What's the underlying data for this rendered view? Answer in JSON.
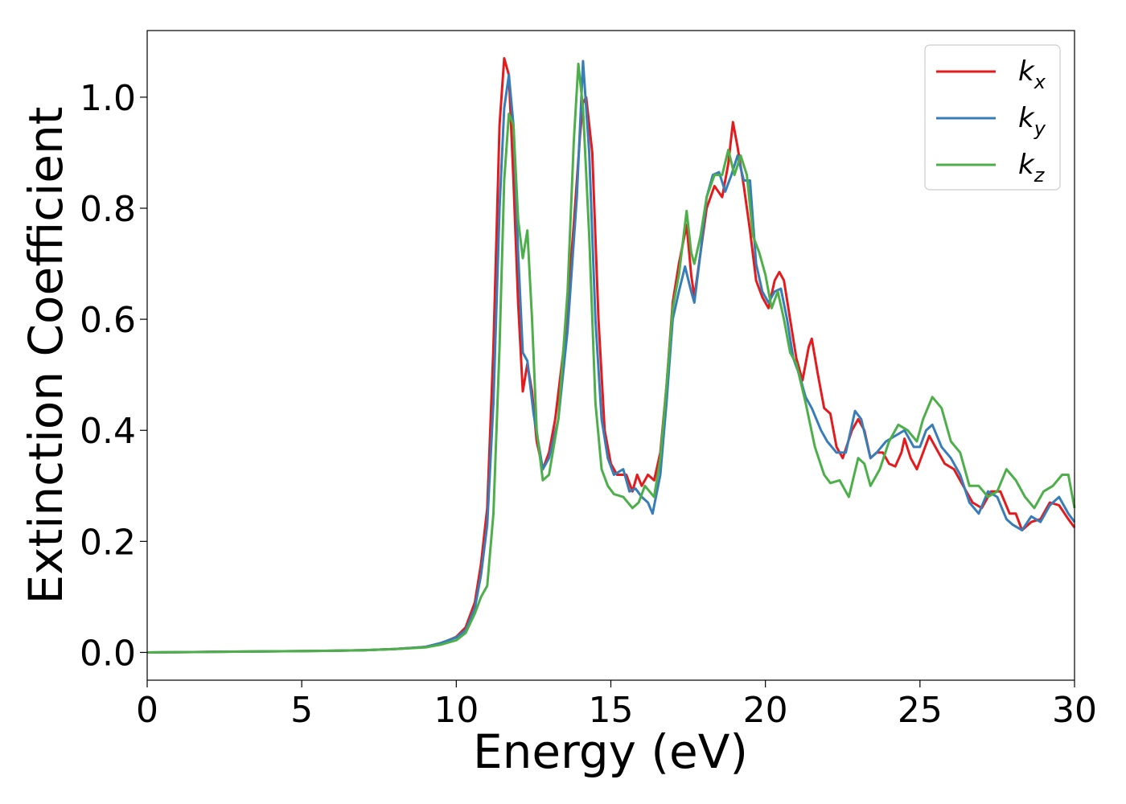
{
  "chart_data": {
    "type": "line",
    "title": "",
    "xlabel": "Energy (eV)",
    "ylabel": "Extinction Coefficient",
    "xlim": [
      0,
      30
    ],
    "ylim": [
      -0.05,
      1.12
    ],
    "xticks": [
      0,
      5,
      10,
      15,
      20,
      25,
      30
    ],
    "xtick_labels": [
      "0",
      "5",
      "10",
      "15",
      "20",
      "25",
      "30"
    ],
    "yticks": [
      0.0,
      0.2,
      0.4,
      0.6,
      0.8,
      1.0
    ],
    "ytick_labels": [
      "0.0",
      "0.2",
      "0.4",
      "0.6",
      "0.8",
      "1.0"
    ],
    "grid": false,
    "legend_position": "top-right",
    "legend_entries": [
      {
        "base": "k",
        "sub": "x"
      },
      {
        "base": "k",
        "sub": "y"
      },
      {
        "base": "k",
        "sub": "z"
      }
    ],
    "series": [
      {
        "name": "k_x",
        "color": "#e41a1c",
        "points": [
          [
            0,
            0.0
          ],
          [
            2,
            0.001
          ],
          [
            4,
            0.002
          ],
          [
            6,
            0.003
          ],
          [
            7,
            0.004
          ],
          [
            8,
            0.006
          ],
          [
            9,
            0.01
          ],
          [
            9.5,
            0.016
          ],
          [
            10,
            0.028
          ],
          [
            10.3,
            0.045
          ],
          [
            10.6,
            0.09
          ],
          [
            10.8,
            0.16
          ],
          [
            11.0,
            0.26
          ],
          [
            11.2,
            0.55
          ],
          [
            11.4,
            0.95
          ],
          [
            11.55,
            1.07
          ],
          [
            11.7,
            1.04
          ],
          [
            11.85,
            0.85
          ],
          [
            12.0,
            0.63
          ],
          [
            12.15,
            0.47
          ],
          [
            12.3,
            0.52
          ],
          [
            12.45,
            0.47
          ],
          [
            12.6,
            0.38
          ],
          [
            12.8,
            0.33
          ],
          [
            13.0,
            0.36
          ],
          [
            13.2,
            0.42
          ],
          [
            13.5,
            0.56
          ],
          [
            13.8,
            0.77
          ],
          [
            14.0,
            0.93
          ],
          [
            14.1,
            0.99
          ],
          [
            14.2,
            1.0
          ],
          [
            14.4,
            0.9
          ],
          [
            14.6,
            0.6
          ],
          [
            14.8,
            0.4
          ],
          [
            15.0,
            0.34
          ],
          [
            15.2,
            0.32
          ],
          [
            15.5,
            0.32
          ],
          [
            15.7,
            0.29
          ],
          [
            15.85,
            0.32
          ],
          [
            16.0,
            0.3
          ],
          [
            16.2,
            0.32
          ],
          [
            16.4,
            0.31
          ],
          [
            16.6,
            0.36
          ],
          [
            16.8,
            0.48
          ],
          [
            17.0,
            0.63
          ],
          [
            17.2,
            0.7
          ],
          [
            17.45,
            0.77
          ],
          [
            17.6,
            0.68
          ],
          [
            17.7,
            0.64
          ],
          [
            17.9,
            0.72
          ],
          [
            18.1,
            0.8
          ],
          [
            18.35,
            0.84
          ],
          [
            18.6,
            0.82
          ],
          [
            18.8,
            0.88
          ],
          [
            18.95,
            0.955
          ],
          [
            19.1,
            0.91
          ],
          [
            19.3,
            0.84
          ],
          [
            19.5,
            0.76
          ],
          [
            19.7,
            0.67
          ],
          [
            19.9,
            0.64
          ],
          [
            20.1,
            0.62
          ],
          [
            20.3,
            0.67
          ],
          [
            20.45,
            0.685
          ],
          [
            20.6,
            0.67
          ],
          [
            20.8,
            0.6
          ],
          [
            21.0,
            0.53
          ],
          [
            21.2,
            0.49
          ],
          [
            21.4,
            0.55
          ],
          [
            21.5,
            0.565
          ],
          [
            21.7,
            0.5
          ],
          [
            21.9,
            0.44
          ],
          [
            22.1,
            0.43
          ],
          [
            22.3,
            0.37
          ],
          [
            22.5,
            0.35
          ],
          [
            22.8,
            0.4
          ],
          [
            23.0,
            0.42
          ],
          [
            23.2,
            0.4
          ],
          [
            23.4,
            0.35
          ],
          [
            23.6,
            0.36
          ],
          [
            23.8,
            0.36
          ],
          [
            24.0,
            0.34
          ],
          [
            24.2,
            0.335
          ],
          [
            24.4,
            0.36
          ],
          [
            24.5,
            0.385
          ],
          [
            24.7,
            0.35
          ],
          [
            24.9,
            0.33
          ],
          [
            25.1,
            0.36
          ],
          [
            25.3,
            0.39
          ],
          [
            25.5,
            0.37
          ],
          [
            25.8,
            0.34
          ],
          [
            26.1,
            0.33
          ],
          [
            26.4,
            0.3
          ],
          [
            26.7,
            0.27
          ],
          [
            27.0,
            0.26
          ],
          [
            27.3,
            0.29
          ],
          [
            27.6,
            0.29
          ],
          [
            27.9,
            0.25
          ],
          [
            28.1,
            0.25
          ],
          [
            28.3,
            0.22
          ],
          [
            28.6,
            0.235
          ],
          [
            28.9,
            0.24
          ],
          [
            29.2,
            0.27
          ],
          [
            29.5,
            0.265
          ],
          [
            29.8,
            0.24
          ],
          [
            30.0,
            0.225
          ]
        ]
      },
      {
        "name": "k_y",
        "color": "#377eb8",
        "points": [
          [
            0,
            0.0
          ],
          [
            2,
            0.001
          ],
          [
            4,
            0.002
          ],
          [
            6,
            0.003
          ],
          [
            7,
            0.004
          ],
          [
            8,
            0.006
          ],
          [
            9,
            0.01
          ],
          [
            9.5,
            0.017
          ],
          [
            10,
            0.027
          ],
          [
            10.3,
            0.04
          ],
          [
            10.6,
            0.08
          ],
          [
            10.8,
            0.14
          ],
          [
            11.0,
            0.23
          ],
          [
            11.2,
            0.45
          ],
          [
            11.4,
            0.8
          ],
          [
            11.55,
            0.98
          ],
          [
            11.7,
            1.04
          ],
          [
            11.85,
            0.95
          ],
          [
            12.0,
            0.72
          ],
          [
            12.15,
            0.54
          ],
          [
            12.3,
            0.525
          ],
          [
            12.5,
            0.43
          ],
          [
            12.8,
            0.33
          ],
          [
            13.0,
            0.35
          ],
          [
            13.3,
            0.42
          ],
          [
            13.6,
            0.58
          ],
          [
            13.9,
            0.82
          ],
          [
            14.1,
            1.065
          ],
          [
            14.3,
            0.9
          ],
          [
            14.5,
            0.6
          ],
          [
            14.7,
            0.42
          ],
          [
            14.9,
            0.35
          ],
          [
            15.1,
            0.32
          ],
          [
            15.4,
            0.33
          ],
          [
            15.6,
            0.29
          ],
          [
            15.8,
            0.295
          ],
          [
            16.0,
            0.28
          ],
          [
            16.2,
            0.27
          ],
          [
            16.35,
            0.25
          ],
          [
            16.6,
            0.32
          ],
          [
            16.8,
            0.45
          ],
          [
            17.0,
            0.6
          ],
          [
            17.2,
            0.65
          ],
          [
            17.4,
            0.695
          ],
          [
            17.6,
            0.65
          ],
          [
            17.7,
            0.63
          ],
          [
            17.9,
            0.72
          ],
          [
            18.1,
            0.82
          ],
          [
            18.3,
            0.86
          ],
          [
            18.5,
            0.865
          ],
          [
            18.7,
            0.83
          ],
          [
            18.9,
            0.86
          ],
          [
            19.1,
            0.895
          ],
          [
            19.3,
            0.85
          ],
          [
            19.5,
            0.85
          ],
          [
            19.7,
            0.7
          ],
          [
            19.9,
            0.65
          ],
          [
            20.1,
            0.63
          ],
          [
            20.3,
            0.65
          ],
          [
            20.5,
            0.655
          ],
          [
            20.7,
            0.6
          ],
          [
            20.9,
            0.53
          ],
          [
            21.1,
            0.5
          ],
          [
            21.3,
            0.46
          ],
          [
            21.5,
            0.44
          ],
          [
            21.8,
            0.4
          ],
          [
            22.0,
            0.38
          ],
          [
            22.3,
            0.36
          ],
          [
            22.6,
            0.36
          ],
          [
            22.9,
            0.435
          ],
          [
            23.1,
            0.42
          ],
          [
            23.4,
            0.35
          ],
          [
            23.6,
            0.36
          ],
          [
            23.9,
            0.38
          ],
          [
            24.2,
            0.39
          ],
          [
            24.5,
            0.4
          ],
          [
            24.8,
            0.37
          ],
          [
            25.0,
            0.37
          ],
          [
            25.2,
            0.4
          ],
          [
            25.4,
            0.41
          ],
          [
            25.7,
            0.37
          ],
          [
            26.0,
            0.35
          ],
          [
            26.3,
            0.32
          ],
          [
            26.6,
            0.27
          ],
          [
            26.9,
            0.25
          ],
          [
            27.2,
            0.29
          ],
          [
            27.5,
            0.28
          ],
          [
            27.8,
            0.24
          ],
          [
            28.0,
            0.23
          ],
          [
            28.3,
            0.22
          ],
          [
            28.6,
            0.245
          ],
          [
            28.9,
            0.235
          ],
          [
            29.2,
            0.265
          ],
          [
            29.5,
            0.28
          ],
          [
            29.8,
            0.25
          ],
          [
            30.0,
            0.235
          ]
        ]
      },
      {
        "name": "k_z",
        "color": "#4daf4a",
        "points": [
          [
            0,
            0.0
          ],
          [
            2,
            0.001
          ],
          [
            4,
            0.002
          ],
          [
            6,
            0.003
          ],
          [
            7,
            0.004
          ],
          [
            8,
            0.006
          ],
          [
            9,
            0.009
          ],
          [
            9.5,
            0.014
          ],
          [
            10,
            0.022
          ],
          [
            10.3,
            0.035
          ],
          [
            10.6,
            0.07
          ],
          [
            10.8,
            0.1
          ],
          [
            11.0,
            0.12
          ],
          [
            11.2,
            0.25
          ],
          [
            11.4,
            0.55
          ],
          [
            11.55,
            0.85
          ],
          [
            11.7,
            0.97
          ],
          [
            11.85,
            0.95
          ],
          [
            12.0,
            0.78
          ],
          [
            12.15,
            0.71
          ],
          [
            12.3,
            0.76
          ],
          [
            12.45,
            0.6
          ],
          [
            12.6,
            0.4
          ],
          [
            12.8,
            0.31
          ],
          [
            13.0,
            0.32
          ],
          [
            13.3,
            0.42
          ],
          [
            13.6,
            0.65
          ],
          [
            13.8,
            0.92
          ],
          [
            13.95,
            1.06
          ],
          [
            14.1,
            0.98
          ],
          [
            14.3,
            0.75
          ],
          [
            14.5,
            0.45
          ],
          [
            14.7,
            0.33
          ],
          [
            14.9,
            0.3
          ],
          [
            15.1,
            0.285
          ],
          [
            15.4,
            0.28
          ],
          [
            15.7,
            0.26
          ],
          [
            15.9,
            0.27
          ],
          [
            16.1,
            0.3
          ],
          [
            16.4,
            0.28
          ],
          [
            16.6,
            0.35
          ],
          [
            16.8,
            0.48
          ],
          [
            17.0,
            0.62
          ],
          [
            17.2,
            0.68
          ],
          [
            17.45,
            0.795
          ],
          [
            17.6,
            0.72
          ],
          [
            17.7,
            0.7
          ],
          [
            17.9,
            0.75
          ],
          [
            18.1,
            0.82
          ],
          [
            18.35,
            0.86
          ],
          [
            18.6,
            0.86
          ],
          [
            18.8,
            0.905
          ],
          [
            19.0,
            0.86
          ],
          [
            19.2,
            0.895
          ],
          [
            19.4,
            0.86
          ],
          [
            19.6,
            0.75
          ],
          [
            19.8,
            0.72
          ],
          [
            20.0,
            0.68
          ],
          [
            20.2,
            0.62
          ],
          [
            20.4,
            0.65
          ],
          [
            20.6,
            0.6
          ],
          [
            20.8,
            0.54
          ],
          [
            21.0,
            0.52
          ],
          [
            21.3,
            0.45
          ],
          [
            21.6,
            0.37
          ],
          [
            21.9,
            0.32
          ],
          [
            22.1,
            0.305
          ],
          [
            22.4,
            0.31
          ],
          [
            22.7,
            0.28
          ],
          [
            23.0,
            0.35
          ],
          [
            23.2,
            0.34
          ],
          [
            23.4,
            0.3
          ],
          [
            23.7,
            0.33
          ],
          [
            24.0,
            0.38
          ],
          [
            24.3,
            0.41
          ],
          [
            24.6,
            0.4
          ],
          [
            24.9,
            0.38
          ],
          [
            25.1,
            0.42
          ],
          [
            25.4,
            0.46
          ],
          [
            25.7,
            0.44
          ],
          [
            26.0,
            0.38
          ],
          [
            26.3,
            0.36
          ],
          [
            26.6,
            0.3
          ],
          [
            26.9,
            0.3
          ],
          [
            27.2,
            0.28
          ],
          [
            27.5,
            0.29
          ],
          [
            27.8,
            0.33
          ],
          [
            28.1,
            0.31
          ],
          [
            28.4,
            0.28
          ],
          [
            28.7,
            0.26
          ],
          [
            29.0,
            0.29
          ],
          [
            29.3,
            0.3
          ],
          [
            29.6,
            0.32
          ],
          [
            29.8,
            0.32
          ],
          [
            30.0,
            0.26
          ]
        ]
      }
    ]
  }
}
